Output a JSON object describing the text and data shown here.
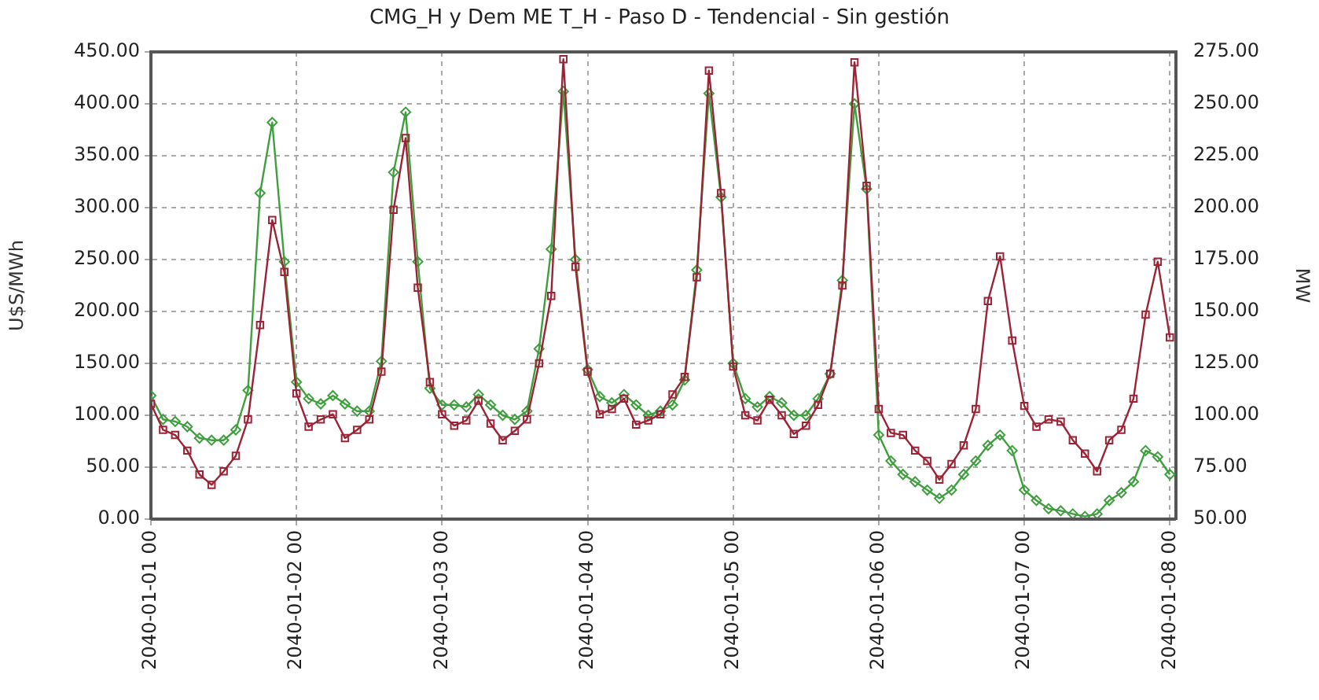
{
  "chart_data": {
    "type": "line",
    "title": "CMG_H y Dem ME T_H - Paso D - Tendencial - Sin gestión",
    "ylabel": "U$S/MWh",
    "y2label": "MW",
    "x": [
      "2040-01-01T00:00",
      "2040-01-01T02:00",
      "2040-01-01T04:00",
      "2040-01-01T06:00",
      "2040-01-01T08:00",
      "2040-01-01T10:00",
      "2040-01-01T12:00",
      "2040-01-01T14:00",
      "2040-01-01T16:00",
      "2040-01-01T18:00",
      "2040-01-01T20:00",
      "2040-01-01T22:00",
      "2040-01-02T00:00",
      "2040-01-02T02:00",
      "2040-01-02T04:00",
      "2040-01-02T06:00",
      "2040-01-02T08:00",
      "2040-01-02T10:00",
      "2040-01-02T12:00",
      "2040-01-02T14:00",
      "2040-01-02T16:00",
      "2040-01-02T18:00",
      "2040-01-02T20:00",
      "2040-01-02T22:00",
      "2040-01-03T00:00",
      "2040-01-03T02:00",
      "2040-01-03T04:00",
      "2040-01-03T06:00",
      "2040-01-03T08:00",
      "2040-01-03T10:00",
      "2040-01-03T12:00",
      "2040-01-03T14:00",
      "2040-01-03T16:00",
      "2040-01-03T18:00",
      "2040-01-03T20:00",
      "2040-01-03T22:00",
      "2040-01-04T00:00",
      "2040-01-04T02:00",
      "2040-01-04T04:00",
      "2040-01-04T06:00",
      "2040-01-04T08:00",
      "2040-01-04T10:00",
      "2040-01-04T12:00",
      "2040-01-04T14:00",
      "2040-01-04T16:00",
      "2040-01-04T18:00",
      "2040-01-04T20:00",
      "2040-01-04T22:00",
      "2040-01-05T00:00",
      "2040-01-05T02:00",
      "2040-01-05T04:00",
      "2040-01-05T06:00",
      "2040-01-05T08:00",
      "2040-01-05T10:00",
      "2040-01-05T12:00",
      "2040-01-05T14:00",
      "2040-01-05T16:00",
      "2040-01-05T18:00",
      "2040-01-05T20:00",
      "2040-01-05T22:00",
      "2040-01-06T00:00",
      "2040-01-06T02:00",
      "2040-01-06T04:00",
      "2040-01-06T06:00",
      "2040-01-06T08:00",
      "2040-01-06T10:00",
      "2040-01-06T12:00",
      "2040-01-06T14:00",
      "2040-01-06T16:00",
      "2040-01-06T18:00",
      "2040-01-06T20:00",
      "2040-01-06T22:00",
      "2040-01-07T00:00",
      "2040-01-07T02:00",
      "2040-01-07T04:00",
      "2040-01-07T06:00",
      "2040-01-07T08:00",
      "2040-01-07T10:00",
      "2040-01-07T12:00",
      "2040-01-07T14:00",
      "2040-01-07T16:00",
      "2040-01-07T18:00",
      "2040-01-07T20:00",
      "2040-01-07T22:00",
      "2040-01-08T00:00"
    ],
    "series": [
      {
        "color": "#9b2335",
        "marker": "square",
        "values": [
          111,
          86,
          81,
          66,
          43,
          33,
          46,
          61,
          96,
          187,
          288,
          238,
          121,
          89,
          96,
          101,
          78,
          86,
          96,
          142,
          298,
          367,
          223,
          132,
          101,
          90,
          95,
          114,
          92,
          76,
          85,
          96,
          150,
          215,
          443,
          243,
          142,
          101,
          106,
          116,
          91,
          95,
          101,
          120,
          137,
          233,
          432,
          314,
          147,
          100,
          95,
          115,
          100,
          82,
          90,
          110,
          140,
          225,
          440,
          321,
          106,
          83,
          81,
          66,
          56,
          38,
          53,
          71,
          106,
          210,
          253,
          172,
          109,
          89,
          96,
          94,
          76,
          63,
          46,
          76,
          86,
          116,
          197,
          248,
          175
        ]
      },
      {
        "color": "#3f9f3f",
        "marker": "diamond",
        "axis": "y2",
        "values": [
          109.5,
          98,
          97,
          94.5,
          89,
          88,
          88,
          93,
          112,
          207,
          241,
          174,
          116,
          108,
          105.5,
          109.5,
          105.5,
          102,
          102,
          126,
          217,
          246,
          174,
          113,
          105,
          105,
          104,
          110,
          105,
          100,
          98,
          102,
          132,
          180,
          256,
          175,
          122,
          109,
          106,
          110,
          105,
          100,
          102,
          105,
          117,
          170,
          255,
          205,
          125,
          108,
          104,
          109,
          106,
          100,
          100,
          108,
          120,
          165,
          250,
          209,
          90.5,
          78,
          71.5,
          68,
          64,
          60,
          64,
          71.5,
          78,
          85.5,
          90.5,
          83,
          64,
          59,
          55,
          54,
          52.5,
          51.3,
          52.5,
          59,
          62.7,
          68,
          83,
          80,
          71.5
        ]
      }
    ],
    "xlim": [
      "2040-01-01T00:00",
      "2040-01-08T01:00"
    ],
    "xticks": [
      {
        "value": "2040-01-01T00:00",
        "label": "2040-01-01 00"
      },
      {
        "value": "2040-01-02T00:00",
        "label": "2040-01-02 00"
      },
      {
        "value": "2040-01-03T00:00",
        "label": "2040-01-03 00"
      },
      {
        "value": "2040-01-04T00:00",
        "label": "2040-01-04 00"
      },
      {
        "value": "2040-01-05T00:00",
        "label": "2040-01-05 00"
      },
      {
        "value": "2040-01-06T00:00",
        "label": "2040-01-06 00"
      },
      {
        "value": "2040-01-07T00:00",
        "label": "2040-01-07 00"
      },
      {
        "value": "2040-01-08T00:00",
        "label": "2040-01-08 00"
      }
    ],
    "ylim": [
      0,
      450
    ],
    "yticks": [
      {
        "value": 0,
        "label": "0.00"
      },
      {
        "value": 50,
        "label": "50.00"
      },
      {
        "value": 100,
        "label": "100.00"
      },
      {
        "value": 150,
        "label": "150.00"
      },
      {
        "value": 200,
        "label": "200.00"
      },
      {
        "value": 250,
        "label": "250.00"
      },
      {
        "value": 300,
        "label": "300.00"
      },
      {
        "value": 350,
        "label": "350.00"
      },
      {
        "value": 400,
        "label": "400.00"
      },
      {
        "value": 450,
        "label": "450.00"
      }
    ],
    "y2lim": [
      50,
      275
    ],
    "y2ticks": [
      {
        "value": 50,
        "label": "50.00"
      },
      {
        "value": 75,
        "label": "75.00"
      },
      {
        "value": 100,
        "label": "100.00"
      },
      {
        "value": 125,
        "label": "125.00"
      },
      {
        "value": 150,
        "label": "150.00"
      },
      {
        "value": 175,
        "label": "175.00"
      },
      {
        "value": 200,
        "label": "200.00"
      },
      {
        "value": 225,
        "label": "225.00"
      },
      {
        "value": 250,
        "label": "250.00"
      },
      {
        "value": 275,
        "label": "275.00"
      }
    ],
    "grid": true,
    "legend": false,
    "line_style": "solid"
  }
}
